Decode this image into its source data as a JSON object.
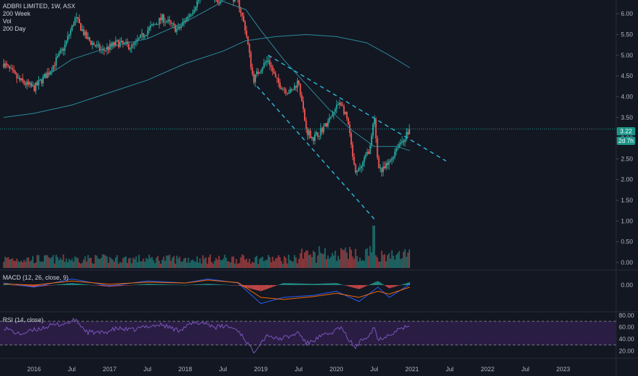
{
  "legend": {
    "symbol_line": "ADBRI LIMITED, 1W, ASX",
    "indicators": [
      "200 Week",
      "Vol",
      "200 Day"
    ]
  },
  "macd_label": "MACD (12, 26, close, 9)",
  "rsi_label": "RSI (14, close)",
  "colors": {
    "background": "#131722",
    "up": "#26a69a",
    "down": "#ef5350",
    "ma_line": "#2d8f9e",
    "trendline": "#2ab6d9",
    "macd_line": "#2962ff",
    "signal_line": "#ff6d00",
    "rsi_line": "#7e57c2",
    "rsi_band": "#2a1d44",
    "badge_price": "#1b9488",
    "badge_time": "#1b9488"
  },
  "price_badge": {
    "value": "3.22",
    "countdown": "2d 7h"
  },
  "chart_data": [
    {
      "type": "candlestick",
      "title": "ADBRI LIMITED, 1W, ASX",
      "x_ticks": [
        "2016",
        "Jul",
        "2017",
        "Jul",
        "2018",
        "Jul",
        "2019",
        "Jul",
        "2020",
        "Jul",
        "2021",
        "Jul",
        "2022",
        "Jul",
        "2023"
      ],
      "y_ticks": [
        "0.00",
        "0.50",
        "1.00",
        "1.50",
        "2.00",
        "2.50",
        "3.00",
        "3.50",
        "4.00",
        "4.50",
        "5.00",
        "5.50",
        "6.00"
      ],
      "ylim": [
        0,
        6.3
      ],
      "last_price": 3.22,
      "price_path": [
        [
          2015.6,
          4.8
        ],
        [
          2015.8,
          4.4
        ],
        [
          2016.0,
          4.2
        ],
        [
          2016.2,
          4.6
        ],
        [
          2016.4,
          5.2
        ],
        [
          2016.55,
          5.9
        ],
        [
          2016.7,
          5.4
        ],
        [
          2016.9,
          5.1
        ],
        [
          2017.1,
          5.3
        ],
        [
          2017.3,
          5.2
        ],
        [
          2017.5,
          5.6
        ],
        [
          2017.7,
          5.9
        ],
        [
          2017.9,
          5.6
        ],
        [
          2018.1,
          6.1
        ],
        [
          2018.25,
          6.6
        ],
        [
          2018.4,
          6.3
        ],
        [
          2018.55,
          6.5
        ],
        [
          2018.7,
          6.3
        ],
        [
          2018.8,
          5.6
        ],
        [
          2018.9,
          4.4
        ],
        [
          2019.0,
          4.7
        ],
        [
          2019.1,
          4.9
        ],
        [
          2019.2,
          4.4
        ],
        [
          2019.3,
          4.2
        ],
        [
          2019.4,
          4.1
        ],
        [
          2019.5,
          4.4
        ],
        [
          2019.6,
          3.2
        ],
        [
          2019.7,
          3.0
        ],
        [
          2019.8,
          3.2
        ],
        [
          2019.9,
          3.4
        ],
        [
          2020.05,
          3.9
        ],
        [
          2020.15,
          3.4
        ],
        [
          2020.25,
          2.1
        ],
        [
          2020.35,
          2.4
        ],
        [
          2020.45,
          2.8
        ],
        [
          2020.5,
          3.5
        ],
        [
          2020.55,
          2.4
        ],
        [
          2020.6,
          2.2
        ],
        [
          2020.7,
          2.4
        ],
        [
          2020.8,
          2.8
        ],
        [
          2020.9,
          3.0
        ],
        [
          2020.97,
          3.22
        ]
      ],
      "ma_200_day": [
        [
          2016.0,
          4.3
        ],
        [
          2016.5,
          4.9
        ],
        [
          2017.0,
          5.2
        ],
        [
          2017.5,
          5.4
        ],
        [
          2018.0,
          5.8
        ],
        [
          2018.5,
          6.3
        ],
        [
          2018.8,
          6.1
        ],
        [
          2019.0,
          5.6
        ],
        [
          2019.3,
          4.9
        ],
        [
          2019.6,
          4.3
        ],
        [
          2019.9,
          3.7
        ],
        [
          2020.2,
          3.2
        ],
        [
          2020.5,
          2.8
        ],
        [
          2020.8,
          2.8
        ],
        [
          2020.97,
          2.7
        ]
      ],
      "ma_200_week": [
        [
          2015.6,
          3.5
        ],
        [
          2016.0,
          3.6
        ],
        [
          2016.5,
          3.8
        ],
        [
          2017.0,
          4.1
        ],
        [
          2017.5,
          4.4
        ],
        [
          2018.0,
          4.8
        ],
        [
          2018.5,
          5.1
        ],
        [
          2018.8,
          5.35
        ],
        [
          2019.2,
          5.45
        ],
        [
          2019.6,
          5.5
        ],
        [
          2020.0,
          5.45
        ],
        [
          2020.4,
          5.3
        ],
        [
          2020.7,
          5.0
        ],
        [
          2020.97,
          4.7
        ]
      ],
      "trendlines": [
        {
          "from": [
            2019.1,
            5.0
          ],
          "to": [
            2021.45,
            2.45
          ]
        },
        {
          "from": [
            2018.95,
            4.25
          ],
          "to": [
            2020.5,
            1.05
          ]
        }
      ]
    },
    {
      "type": "bar",
      "title": "Vol",
      "y_ticks": []
    },
    {
      "type": "line",
      "title": "MACD (12, 26, close, 9)",
      "y_ticks": [
        "0.00"
      ],
      "series": [
        {
          "values": [
            [
              2015.6,
              0.05
            ],
            [
              2016.0,
              -0.05
            ],
            [
              2016.5,
              0.15
            ],
            [
              2017.0,
              -0.02
            ],
            [
              2017.5,
              0.1
            ],
            [
              2018.0,
              0.05
            ],
            [
              2018.3,
              0.15
            ],
            [
              2018.7,
              0.05
            ],
            [
              2019.0,
              -0.45
            ],
            [
              2019.3,
              -0.3
            ],
            [
              2019.7,
              -0.25
            ],
            [
              2020.0,
              -0.15
            ],
            [
              2020.3,
              -0.4
            ],
            [
              2020.55,
              -0.05
            ],
            [
              2020.7,
              -0.3
            ],
            [
              2020.97,
              0.02
            ]
          ]
        },
        {
          "values": [
            [
              2015.6,
              0.03
            ],
            [
              2016.0,
              0.0
            ],
            [
              2016.5,
              0.1
            ],
            [
              2017.0,
              0.02
            ],
            [
              2017.5,
              0.07
            ],
            [
              2018.0,
              0.05
            ],
            [
              2018.3,
              0.12
            ],
            [
              2018.7,
              0.06
            ],
            [
              2019.0,
              -0.3
            ],
            [
              2019.3,
              -0.35
            ],
            [
              2019.7,
              -0.28
            ],
            [
              2020.0,
              -0.2
            ],
            [
              2020.3,
              -0.3
            ],
            [
              2020.55,
              -0.15
            ],
            [
              2020.7,
              -0.22
            ],
            [
              2020.97,
              -0.05
            ]
          ]
        }
      ]
    },
    {
      "type": "line",
      "title": "RSI (14, close)",
      "y_ticks": [
        "80.00",
        "60.00",
        "40.00",
        "20.00"
      ],
      "ylim": [
        10,
        85
      ],
      "band": [
        30,
        70
      ],
      "values": [
        [
          2015.6,
          60
        ],
        [
          2015.8,
          48
        ],
        [
          2016.0,
          55
        ],
        [
          2016.2,
          62
        ],
        [
          2016.4,
          66
        ],
        [
          2016.55,
          72
        ],
        [
          2016.7,
          52
        ],
        [
          2016.9,
          50
        ],
        [
          2017.1,
          58
        ],
        [
          2017.3,
          55
        ],
        [
          2017.5,
          62
        ],
        [
          2017.7,
          64
        ],
        [
          2017.9,
          55
        ],
        [
          2018.1,
          66
        ],
        [
          2018.25,
          68
        ],
        [
          2018.4,
          60
        ],
        [
          2018.55,
          62
        ],
        [
          2018.7,
          55
        ],
        [
          2018.8,
          38
        ],
        [
          2018.9,
          18
        ],
        [
          2019.0,
          35
        ],
        [
          2019.1,
          48
        ],
        [
          2019.2,
          40
        ],
        [
          2019.3,
          42
        ],
        [
          2019.4,
          45
        ],
        [
          2019.5,
          52
        ],
        [
          2019.6,
          32
        ],
        [
          2019.7,
          38
        ],
        [
          2019.8,
          45
        ],
        [
          2019.9,
          48
        ],
        [
          2020.05,
          60
        ],
        [
          2020.15,
          42
        ],
        [
          2020.25,
          25
        ],
        [
          2020.35,
          40
        ],
        [
          2020.45,
          50
        ],
        [
          2020.5,
          62
        ],
        [
          2020.55,
          38
        ],
        [
          2020.6,
          42
        ],
        [
          2020.7,
          48
        ],
        [
          2020.8,
          55
        ],
        [
          2020.9,
          60
        ],
        [
          2020.97,
          58
        ]
      ]
    }
  ]
}
